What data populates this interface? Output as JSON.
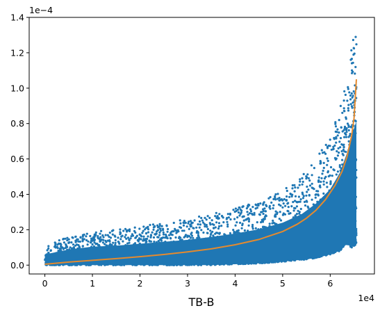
{
  "chart_data": {
    "type": "scatter",
    "title": "",
    "xlabel": "TB-B",
    "ylabel": "",
    "x_offset_text": "1e4",
    "y_offset_text": "1e−4",
    "xlim": [
      -3300,
      69300
    ],
    "ylim": [
      -5e-06,
      0.00014
    ],
    "x_ticks": [
      0,
      10000,
      20000,
      30000,
      40000,
      50000,
      60000
    ],
    "x_tick_labels": [
      "0",
      "1",
      "2",
      "3",
      "4",
      "5",
      "6"
    ],
    "y_ticks": [
      0,
      2e-05,
      4e-05,
      6e-05,
      8e-05,
      0.0001,
      0.00012,
      0.00014
    ],
    "y_tick_labels": [
      "0.0",
      "0.2",
      "0.4",
      "0.6",
      "0.8",
      "1.0",
      "1.2",
      "1.4"
    ],
    "grid": false,
    "legend": "none",
    "colors": {
      "scatter": "#1f77b4",
      "fit": "#e58a2e"
    },
    "series": [
      {
        "kind": "scatter-cloud",
        "band_x": [
          0,
          5000,
          10000,
          15000,
          20000,
          25000,
          30000,
          35000,
          40000,
          45000,
          50000,
          54000,
          57000,
          60000,
          62000,
          63500,
          64500,
          65500
        ],
        "band_low": [
          0,
          0,
          0,
          0,
          0,
          0,
          0,
          0,
          5e-07,
          1e-06,
          2e-06,
          3e-06,
          4e-06,
          6e-06,
          8e-06,
          1.2e-05,
          1e-05,
          1.2e-05
        ],
        "band_high": [
          1.1e-05,
          1.6e-05,
          1.9e-05,
          2e-05,
          2.2e-05,
          2.4e-05,
          2.6e-05,
          2.9e-05,
          3.2e-05,
          3.6e-05,
          4.2e-05,
          5e-05,
          6e-05,
          7.3e-05,
          8.8e-05,
          0.000105,
          0.000125,
          0.000138
        ]
      },
      {
        "kind": "fit-line",
        "x": [
          0,
          5000,
          10000,
          15000,
          20000,
          25000,
          30000,
          35000,
          40000,
          45000,
          50000,
          53000,
          55000,
          57000,
          59000,
          61000,
          62500,
          63500,
          64500,
          65000,
          65500
        ],
        "y": [
          5e-07,
          1.7e-06,
          2.7e-06,
          3.7e-06,
          4.8e-06,
          6e-06,
          7.5e-06,
          9.2e-06,
          1.15e-05,
          1.45e-05,
          1.9e-05,
          2.3e-05,
          2.65e-05,
          3.1e-05,
          3.7e-05,
          4.5e-05,
          5.3e-05,
          6.1e-05,
          7.3e-05,
          8.3e-05,
          0.000105
        ]
      }
    ]
  }
}
